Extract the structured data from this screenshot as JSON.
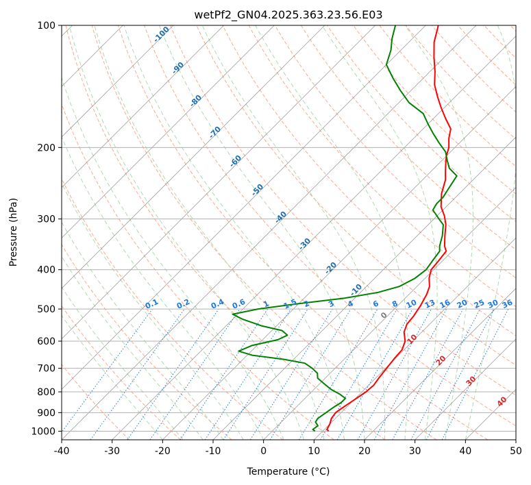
{
  "chart_data": {
    "type": "line",
    "title": "wetPf2_GN04.2025.363.23.56.E03",
    "xlabel": "Temperature (°C)",
    "ylabel": "Pressure (hPa)",
    "xlim": [
      -40,
      50
    ],
    "ylim": [
      1050,
      100
    ],
    "y_scale": "log",
    "x_ticks": [
      -40,
      -30,
      -20,
      -10,
      0,
      10,
      20,
      30,
      40,
      50
    ],
    "y_ticks": [
      100,
      200,
      300,
      400,
      500,
      600,
      700,
      800,
      900,
      1000
    ],
    "grid": true,
    "skew": true,
    "colors": {
      "temperature": "#ff0000",
      "dewpoint": "#008000",
      "isotherm": "#808080",
      "dry_adiabat": "#fca082",
      "moist_adiabat": "#a6d5a6",
      "mixing_ratio": "#1e78dc",
      "isotherm_label": "#1f6fb0",
      "dry_label": "#d62728",
      "zero_label": "#808080"
    },
    "series": [
      {
        "name": "temperature",
        "points": [
          [
            11.2,
            1000
          ],
          [
            10.5,
            990
          ],
          [
            10.0,
            960
          ],
          [
            9.2,
            930
          ],
          [
            8.9,
            900
          ],
          [
            9.4,
            870
          ],
          [
            10.0,
            840
          ],
          [
            10.8,
            800
          ],
          [
            11.0,
            770
          ],
          [
            10.6,
            740
          ],
          [
            10.2,
            700
          ],
          [
            9.8,
            660
          ],
          [
            9.6,
            630
          ],
          [
            8.5,
            600
          ],
          [
            6.5,
            570
          ],
          [
            5.5,
            545
          ],
          [
            5.2,
            520
          ],
          [
            4.5,
            490
          ],
          [
            3.5,
            460
          ],
          [
            2.5,
            440
          ],
          [
            0.8,
            420
          ],
          [
            -0.5,
            400
          ],
          [
            -0.8,
            380
          ],
          [
            -1.2,
            360
          ],
          [
            -2.5,
            350
          ],
          [
            -4.5,
            330
          ],
          [
            -6.5,
            310
          ],
          [
            -8.5,
            295
          ],
          [
            -11,
            280
          ],
          [
            -13.5,
            260
          ],
          [
            -15.5,
            240
          ],
          [
            -17,
            230
          ],
          [
            -18.5,
            220
          ],
          [
            -20,
            210
          ],
          [
            -21.2,
            200
          ],
          [
            -23.0,
            190
          ],
          [
            -24.5,
            180
          ],
          [
            -27.5,
            170
          ],
          [
            -30.5,
            160
          ],
          [
            -33.5,
            150
          ],
          [
            -36.5,
            140
          ],
          [
            -39,
            130
          ],
          [
            -42,
            120
          ],
          [
            -45,
            110
          ],
          [
            -47.5,
            100
          ]
        ]
      },
      {
        "name": "dewpoint",
        "points": [
          [
            8.5,
            1000
          ],
          [
            7.7,
            990
          ],
          [
            8.0,
            970
          ],
          [
            6.8,
            950
          ],
          [
            6.5,
            930
          ],
          [
            7.0,
            900
          ],
          [
            7.5,
            870
          ],
          [
            8.0,
            850
          ],
          [
            8.0,
            830
          ],
          [
            6.0,
            810
          ],
          [
            3.5,
            790
          ],
          [
            1.5,
            770
          ],
          [
            -1.5,
            740
          ],
          [
            -2.5,
            720
          ],
          [
            -4.5,
            700
          ],
          [
            -7.0,
            680
          ],
          [
            -12,
            665
          ],
          [
            -19,
            650
          ],
          [
            -22.5,
            635
          ],
          [
            -21,
            615
          ],
          [
            -17,
            595
          ],
          [
            -16,
            580
          ],
          [
            -18,
            565
          ],
          [
            -23,
            550
          ],
          [
            -28,
            530
          ],
          [
            -31,
            515
          ],
          [
            -27,
            500
          ],
          [
            -20,
            485
          ],
          [
            -12,
            470
          ],
          [
            -6.5,
            455
          ],
          [
            -3.5,
            440
          ],
          [
            -2.0,
            420
          ],
          [
            -1.5,
            400
          ],
          [
            -2.0,
            380
          ],
          [
            -2.5,
            360
          ],
          [
            -3.5,
            350
          ],
          [
            -5,
            330
          ],
          [
            -7,
            310
          ],
          [
            -9,
            300
          ],
          [
            -12,
            285
          ],
          [
            -12.5,
            275
          ],
          [
            -12.5,
            265
          ],
          [
            -13,
            255
          ],
          [
            -13.5,
            245
          ],
          [
            -14,
            235
          ],
          [
            -17,
            225
          ],
          [
            -19,
            215
          ],
          [
            -21,
            205
          ],
          [
            -24,
            195
          ],
          [
            -27,
            185
          ],
          [
            -30,
            175
          ],
          [
            -33,
            165
          ],
          [
            -38,
            155
          ],
          [
            -42,
            145
          ],
          [
            -46,
            135
          ],
          [
            -50,
            125
          ],
          [
            -52,
            115
          ],
          [
            -54,
            108
          ],
          [
            -56,
            100
          ]
        ]
      }
    ],
    "isotherm_labels": [
      "-100",
      "-90",
      "-80",
      "-70",
      "-60",
      "-50",
      "-40",
      "-30",
      "-20",
      "-10",
      "0"
    ],
    "dry_adiabat_labels": [
      "10",
      "20",
      "30",
      "40"
    ],
    "mixing_ratio_labels": [
      "0.1",
      "0.2",
      "0.4",
      "0.6",
      "1",
      "1.5",
      "2",
      "3",
      "4",
      "6",
      "8",
      "10",
      "13",
      "16",
      "20",
      "25",
      "30",
      "36"
    ]
  }
}
